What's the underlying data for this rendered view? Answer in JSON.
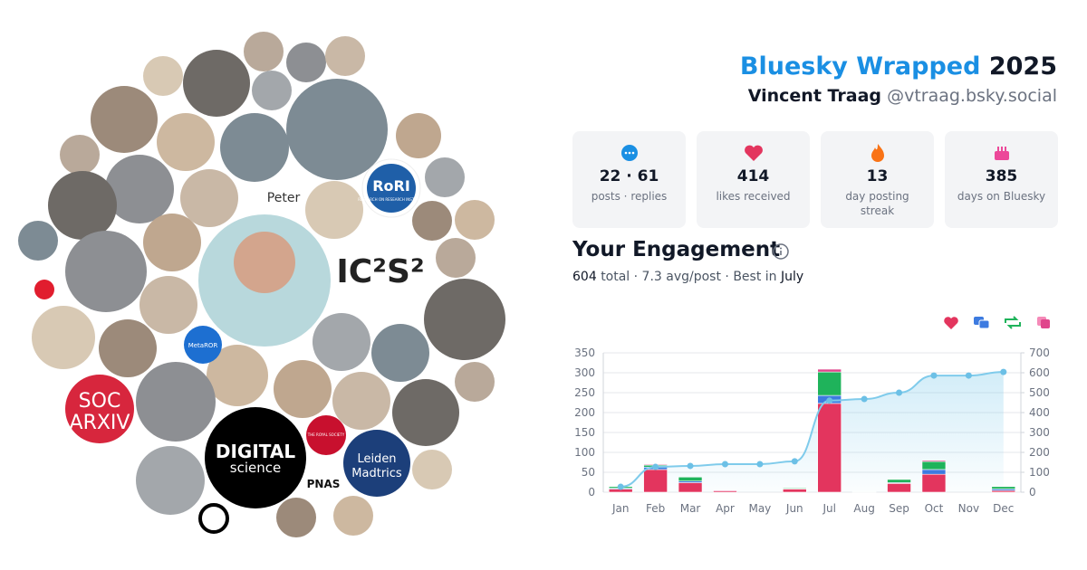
{
  "header": {
    "title_brand": "Bluesky Wrapped",
    "title_year": "2025",
    "name": "Vincent Traag",
    "handle": "@vtraag.bsky.social"
  },
  "stats": [
    {
      "value": "22 · 61",
      "label": "posts · replies"
    },
    {
      "value": "414",
      "label": "likes received"
    },
    {
      "value": "13",
      "label": "day posting streak"
    },
    {
      "value": "385",
      "label": "days on Bluesky"
    }
  ],
  "engagement": {
    "title": "Your Engagement",
    "total": "604",
    "summary": "total · 7.3 avg/post · Best in",
    "best": "July"
  },
  "collage": {
    "labels": [
      "SOC",
      "ARXIV",
      "DIGITAL",
      "science",
      "Leiden",
      "Madtrics",
      "RoRI",
      "RESEARCH ON RESEARCH INSTITUTE",
      "IC²S²",
      "PNAS",
      "Peter",
      "THE ROYAL SOCIETY",
      "MetaROR"
    ]
  },
  "chart_data": {
    "type": "bar",
    "categories": [
      "Jan",
      "Feb",
      "Mar",
      "Apr",
      "May",
      "Jun",
      "Jul",
      "Aug",
      "Sep",
      "Oct",
      "Nov",
      "Dec"
    ],
    "series": [
      {
        "color": "#e3355e",
        "values": [
          8,
          57,
          24,
          3,
          0,
          8,
          223,
          1,
          22,
          45,
          0,
          4
        ]
      },
      {
        "color": "#3d7be0",
        "values": [
          2,
          6,
          4,
          0,
          0,
          1,
          20,
          0,
          2,
          12,
          0,
          4
        ]
      },
      {
        "color": "#1fb35b",
        "values": [
          4,
          5,
          10,
          0,
          0,
          2,
          59,
          1,
          8,
          20,
          0,
          6
        ]
      },
      {
        "color": "#e0468c",
        "values": [
          0,
          2,
          0,
          2,
          0,
          0,
          7,
          0,
          0,
          3,
          0,
          0
        ]
      },
      {
        "type": "line",
        "axis": "y2",
        "color": "#7fcbeb",
        "values": [
          27,
          127,
          132,
          141,
          141,
          155,
          460,
          468,
          500,
          586,
          586,
          604
        ]
      }
    ],
    "ylim": [
      0,
      350
    ],
    "yticks": [
      0,
      50,
      100,
      150,
      200,
      250,
      300,
      350
    ],
    "y2lim": [
      0,
      700
    ],
    "y2ticks": [
      0,
      100,
      200,
      300,
      400,
      500,
      600,
      700
    ],
    "grid": true
  }
}
